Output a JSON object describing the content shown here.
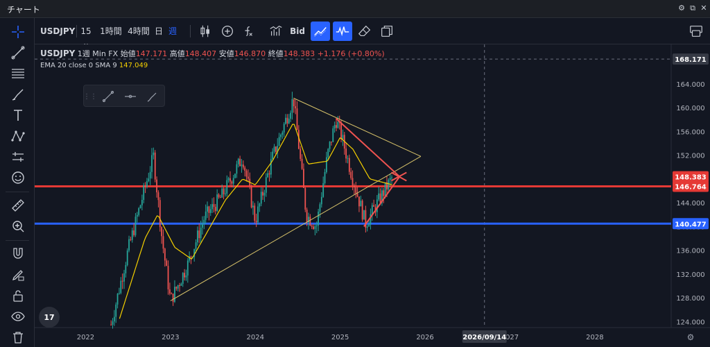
{
  "window": {
    "title": "チャート"
  },
  "toolbar": {
    "symbol": "USDJPY",
    "intervals": [
      "15分",
      "1時間",
      "4時間",
      "日",
      "週"
    ],
    "active_interval": "週",
    "price_side": "Bid"
  },
  "legend": {
    "symbol": "USDJPY",
    "interval": "1週",
    "source": "Min FX",
    "open_label": "始値",
    "open": "147.171",
    "high_label": "高値",
    "high": "148.407",
    "low_label": "安値",
    "low": "146.870",
    "close_label": "終値",
    "close": "148.383",
    "change": "+1.176 (+0.80%)",
    "indicator_label": "EMA 20 close 0 SMA 9",
    "indicator_value": "147.049"
  },
  "colors": {
    "background": "#131722",
    "up_candle": "#26a69a",
    "down_candle": "#ef5350",
    "accent_blue": "#2962ff",
    "ema": "#f5d000",
    "trendline": "#d8c36a",
    "support_red": "#e53935",
    "support_blue": "#2962ff"
  },
  "icons": {
    "left_toolbar": [
      "crosshair-icon",
      "trendline-icon",
      "fib-icon",
      "brush-icon",
      "text-icon",
      "pattern-icon",
      "forecast-icon",
      "emoji-icon",
      "ruler-icon",
      "zoom-icon",
      "magnet-icon",
      "lock-drawing-icon",
      "lock-icon",
      "eye-icon",
      "trash-icon"
    ],
    "top_toolbar": [
      "candles-icon",
      "add-icon",
      "indicators-icon",
      "bar-replay-icon",
      "trend-active-icon",
      "wave-active-icon",
      "eraser-icon",
      "layout-icon",
      "layouts-panel-icon"
    ]
  },
  "chart_data": {
    "type": "line",
    "title": "",
    "instrument": "USDJPY",
    "timeframe": "1週",
    "xlabel": "",
    "ylabel": "",
    "x_ticks": [
      "2022",
      "2023",
      "2024",
      "2025",
      "2026",
      "2027",
      "2028"
    ],
    "y_ticks": [
      124,
      128,
      132,
      136,
      140,
      144,
      148,
      152,
      156,
      160,
      164
    ],
    "ylim": [
      123,
      169
    ],
    "grid": false,
    "crosshair": {
      "date": "2026/09/14",
      "price": "168.171"
    },
    "price_labels": [
      {
        "value": "168.171",
        "kind": "crosshair"
      },
      {
        "value": "148.383",
        "kind": "last"
      },
      {
        "value": "146.764",
        "kind": "red-line"
      },
      {
        "value": "140.477",
        "kind": "blue-line"
      }
    ],
    "horizontal_lines": [
      {
        "price": 146.764,
        "color": "#e53935"
      },
      {
        "price": 140.477,
        "color": "#2962ff"
      }
    ],
    "series": [
      {
        "name": "USDJPY",
        "x": [
          2022.3,
          2022.5,
          2022.8,
          2022.9,
          2023.0,
          2023.2,
          2023.4,
          2023.6,
          2023.85,
          2024.0,
          2024.2,
          2024.45,
          2024.6,
          2024.72,
          2024.85,
          2024.95,
          2025.0,
          2025.15,
          2025.3,
          2025.5,
          2025.62
        ],
        "values": [
          123.5,
          136.0,
          151.8,
          138.0,
          127.5,
          133.5,
          141.5,
          145.0,
          151.7,
          141.0,
          151.5,
          161.6,
          142.0,
          140.0,
          152.0,
          158.0,
          156.0,
          148.0,
          140.5,
          145.5,
          148.4
        ]
      },
      {
        "name": "EMA 20",
        "x": [
          2022.4,
          2022.7,
          2022.85,
          2023.05,
          2023.25,
          2023.45,
          2023.65,
          2023.85,
          2024.0,
          2024.2,
          2024.45,
          2024.62,
          2024.85,
          2025.0,
          2025.15,
          2025.35,
          2025.62
        ],
        "values": [
          124.5,
          138.0,
          142.0,
          136.5,
          134.5,
          139.5,
          144.5,
          148.0,
          147.0,
          151.0,
          157.5,
          150.5,
          151.0,
          155.0,
          153.0,
          148.0,
          147.0
        ]
      }
    ],
    "trendlines": [
      {
        "x": [
          2023.0,
          2025.95
        ],
        "values": [
          127.5,
          151.8
        ]
      },
      {
        "x": [
          2024.45,
          2025.95
        ],
        "values": [
          161.6,
          151.8
        ]
      },
      {
        "x": [
          2024.95,
          2025.7
        ],
        "values": [
          158.2,
          148.4
        ]
      },
      {
        "x": [
          2025.28,
          2025.7
        ],
        "values": [
          140.0,
          148.4
        ]
      }
    ]
  }
}
